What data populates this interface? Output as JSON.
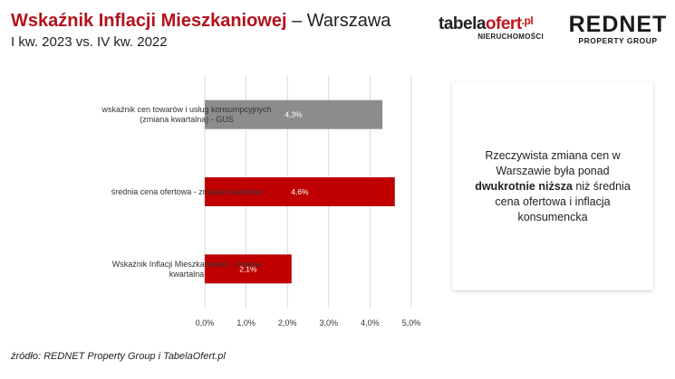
{
  "header": {
    "title_strong": "Wskaźnik Inflacji Mieszkaniowej",
    "title_rest": " – Warszawa",
    "subtitle": "I kw. 2023 vs. IV kw. 2022"
  },
  "logos": {
    "tabela_main": "tabela",
    "tabela_accent": "ofert",
    "tabela_suffix": ".pl",
    "tabela_tag": "NIERUCHOMOŚCI",
    "rednet_main": "REDNET",
    "rednet_tag": "PROPERTY GROUP"
  },
  "note": {
    "text_before": "Rzeczywista zmiana cen w Warszawie była ponad ",
    "text_bold": "dwukrotnie niższa",
    "text_after": " niż średnia cena ofertowa i inflacja konsumencka"
  },
  "source": "źródło: REDNET Property Group i TabelaOfert.pl",
  "chart_data": {
    "type": "bar",
    "orientation": "horizontal",
    "categories": [
      [
        "wskaźnik cen towarów i usług konsumpcyjnych",
        "(zmiana kwartalna) - GUS"
      ],
      [
        "średnia cena ofertowa - zmiana kwartalna"
      ],
      [
        "Wskaźnik Inflacji Mieszkaniowej - zmiana",
        "kwartalna"
      ]
    ],
    "values": [
      4.3,
      4.6,
      2.1
    ],
    "value_labels": [
      "4,3%",
      "4,6%",
      "2,1%"
    ],
    "bar_colors": [
      "#8c8c8c",
      "#c00000",
      "#c00000"
    ],
    "xlim": [
      0,
      5
    ],
    "ticks": [
      0,
      1,
      2,
      3,
      4,
      5
    ],
    "tick_labels": [
      "0,0%",
      "1,0%",
      "2,0%",
      "3,0%",
      "4,0%",
      "5,0%"
    ],
    "grid": "vertical",
    "grid_color": "#d9d9d9"
  }
}
